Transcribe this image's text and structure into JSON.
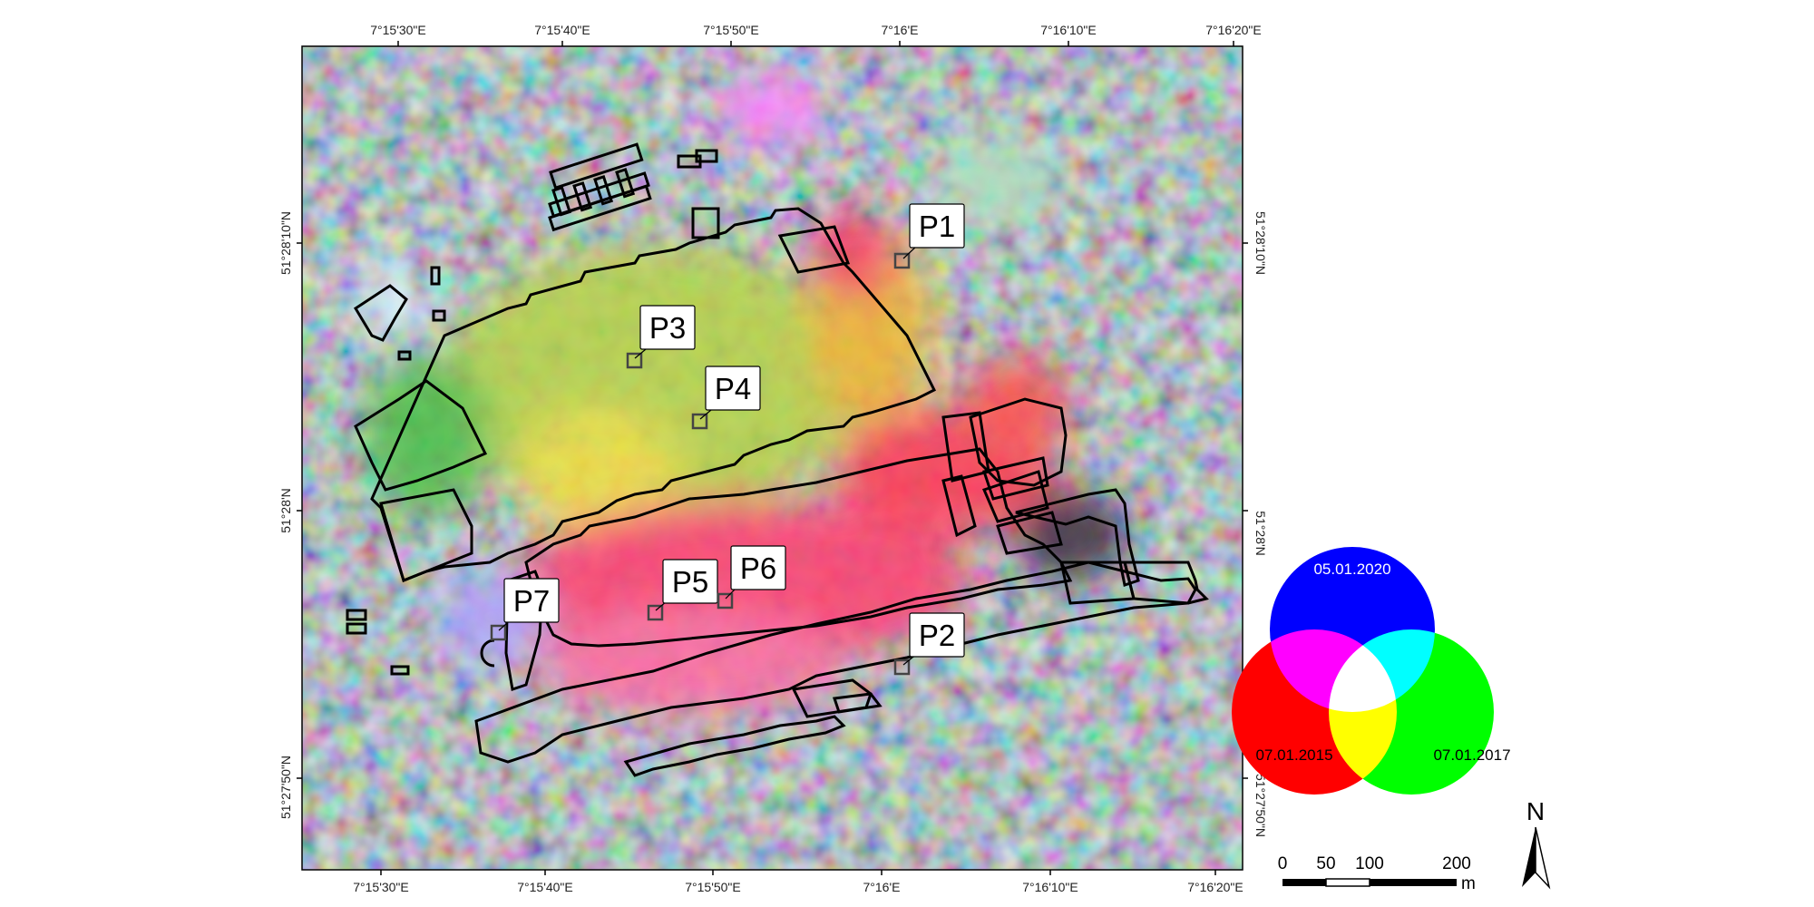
{
  "map": {
    "top_ticks": [
      "7°15'30\"E",
      "7°15'40\"E",
      "7°15'50\"E",
      "7°16'E",
      "7°16'10\"E",
      "7°16'20\"E"
    ],
    "bottom_ticks": [
      "7°15'30\"E",
      "7°15'40\"E",
      "7°15'50\"E",
      "7°16'E",
      "7°16'10\"E",
      "7°16'20\"E"
    ],
    "left_ticks": [
      "51°28'10\"N",
      "51°28'N",
      "51°27'50\"N"
    ],
    "right_ticks": [
      "51°28'10\"N",
      "51°28'N",
      "51°27'50\"N"
    ],
    "points": [
      {
        "label": "P1"
      },
      {
        "label": "P2"
      },
      {
        "label": "P3"
      },
      {
        "label": "P4"
      },
      {
        "label": "P5"
      },
      {
        "label": "P6"
      },
      {
        "label": "P7"
      }
    ]
  },
  "legend": {
    "blue_date": "05.01.2020",
    "red_date": "07.01.2015",
    "green_date": "07.01.2017",
    "colors": {
      "red": "#ff0000",
      "green": "#00ff00",
      "blue": "#0000ff"
    }
  },
  "scalebar": {
    "labels": [
      "0",
      "50",
      "100",
      "200"
    ],
    "unit": "m"
  },
  "north": {
    "label": "N",
    "icon": "north-arrow-icon"
  }
}
